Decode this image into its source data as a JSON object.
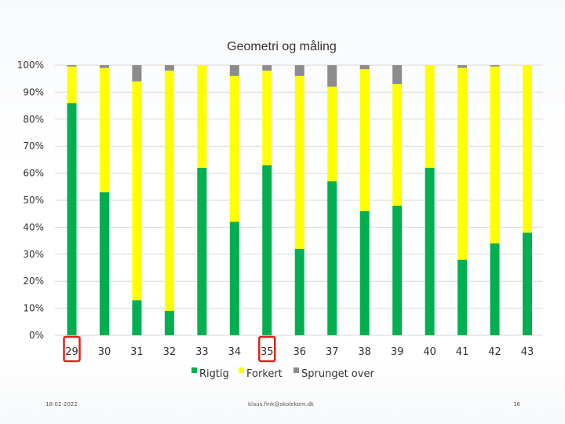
{
  "chart_data": {
    "type": "bar",
    "stacked": true,
    "percent_stacked": true,
    "title": "Geometri og måling",
    "xlabel": "",
    "ylabel": "",
    "ylim": [
      0,
      100
    ],
    "y_ticks": [
      "0%",
      "10%",
      "20%",
      "30%",
      "40%",
      "50%",
      "60%",
      "70%",
      "80%",
      "90%",
      "100%"
    ],
    "grid": true,
    "legend_position": "bottom",
    "categories": [
      "29",
      "30",
      "31",
      "32",
      "33",
      "34",
      "35",
      "36",
      "37",
      "38",
      "39",
      "40",
      "41",
      "42",
      "43"
    ],
    "highlighted_categories": [
      "29",
      "35"
    ],
    "highlight_color": "#e0221b",
    "series": [
      {
        "name": "Rigtig",
        "color": "#00b050",
        "values": [
          86,
          53,
          13,
          9,
          62,
          42,
          63,
          32,
          57,
          46,
          48,
          62,
          28,
          34,
          38
        ]
      },
      {
        "name": "Forkert",
        "color": "#ffff00",
        "values": [
          13.5,
          46,
          81,
          89,
          38,
          54,
          35,
          64,
          35,
          52.5,
          45,
          38,
          71,
          65.5,
          62
        ]
      },
      {
        "name": "Sprunget over",
        "color": "#8c8c8c",
        "values": [
          0.5,
          1,
          6,
          2,
          0,
          4,
          2,
          4,
          8,
          1.5,
          7,
          0,
          1,
          0.5,
          0
        ]
      }
    ]
  },
  "footer": {
    "date": "18-02-2022",
    "email": "klaus.fink@skolekom.dk",
    "page": "16"
  }
}
